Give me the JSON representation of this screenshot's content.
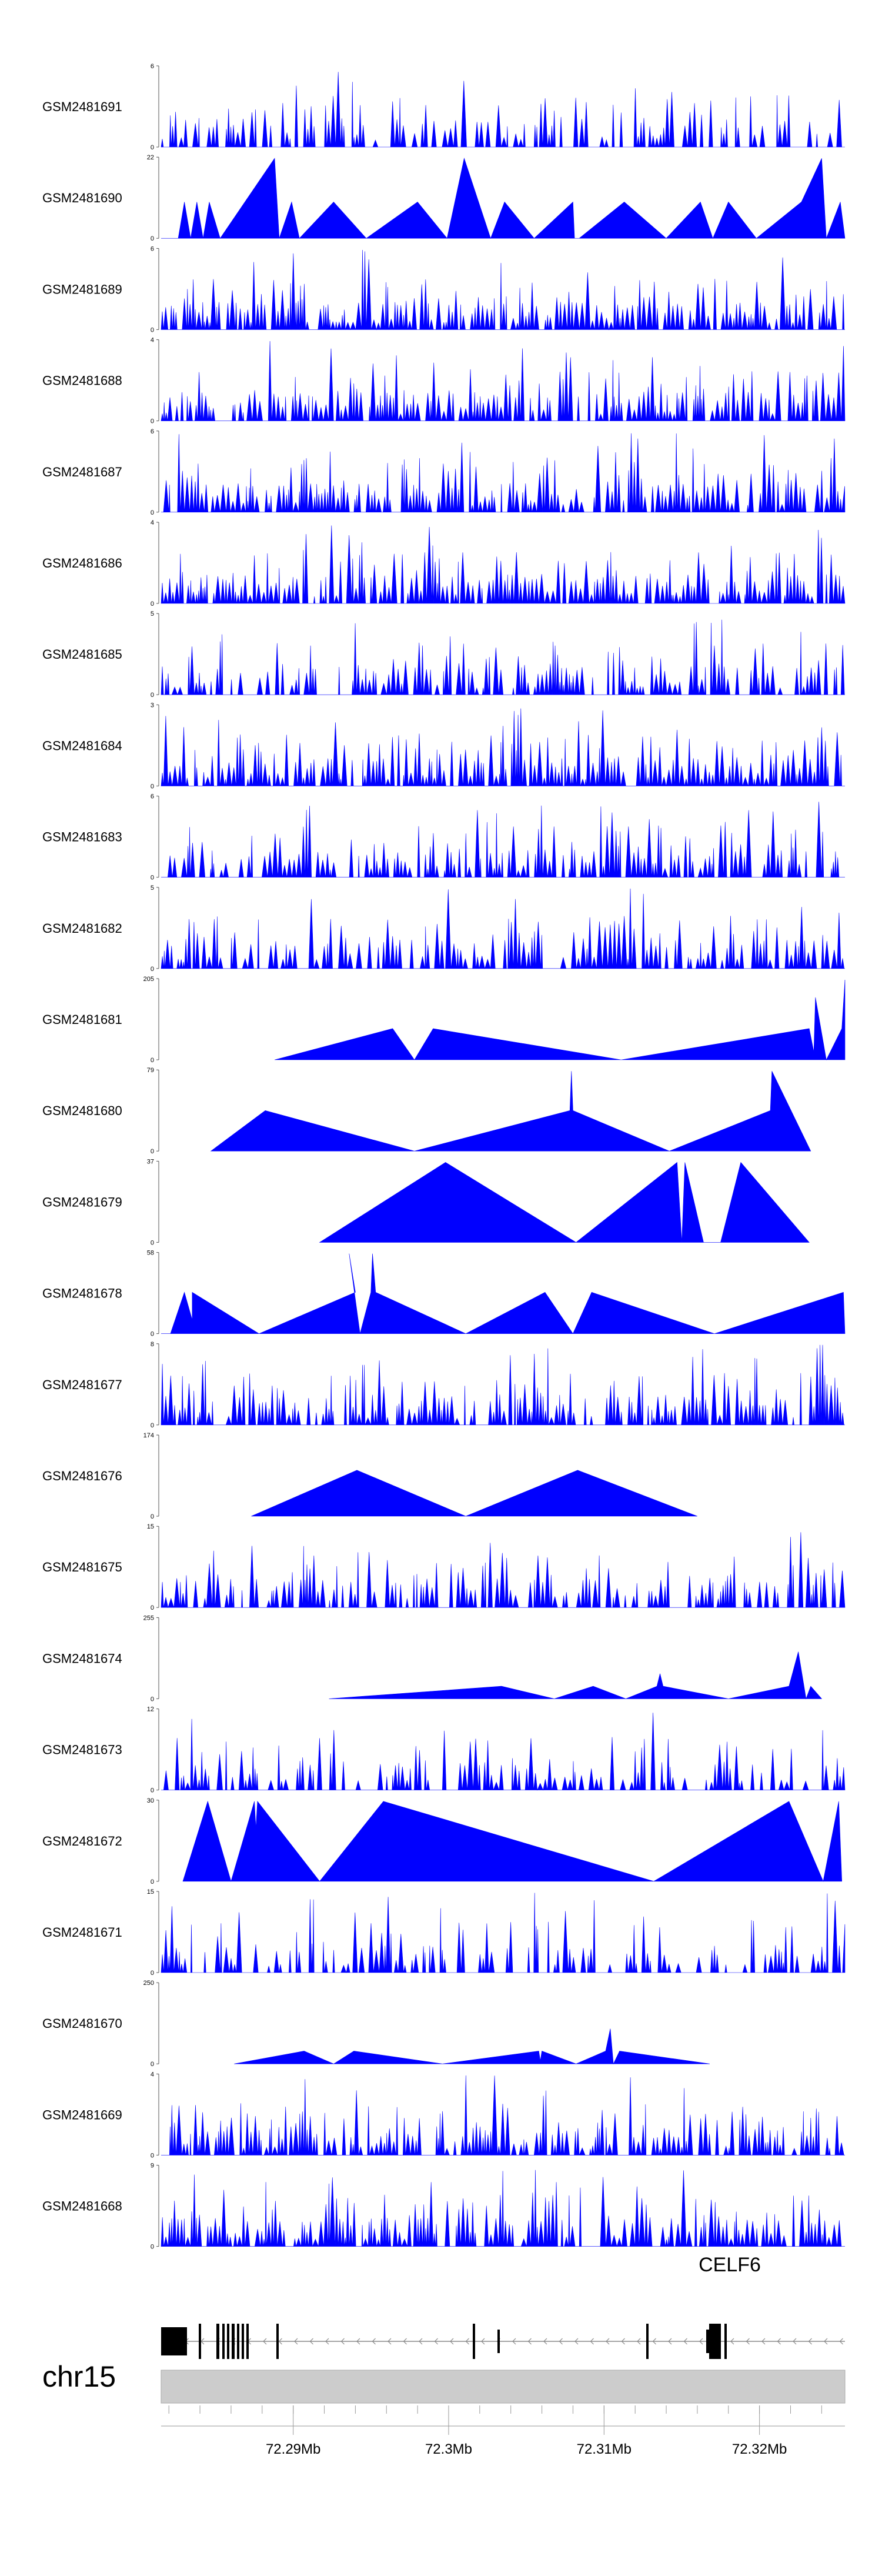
{
  "chart_data": {
    "type": "area",
    "title": "",
    "xlabel": "",
    "ylabel": "",
    "chromosome": "chr15",
    "gene": "CELF6",
    "series_color": "#0000ff",
    "xlim": [
      72.2815,
      72.3255
    ],
    "xticks": [
      {
        "value": 72.29,
        "label": "72.29Mb"
      },
      {
        "value": 72.3,
        "label": "72.3Mb"
      },
      {
        "value": 72.31,
        "label": "72.31Mb"
      },
      {
        "value": 72.32,
        "label": "72.32Mb"
      }
    ],
    "tracks": [
      {
        "name": "GSM2481691",
        "ymax": "6",
        "mode": "dense",
        "peak_freq": 0.55,
        "seed": 11
      },
      {
        "name": "GSM2481690",
        "ymax": "22",
        "mode": "sparse",
        "points": [
          [
            72.2815,
            0
          ],
          [
            72.2826,
            0
          ],
          [
            72.283,
            10
          ],
          [
            72.2834,
            0
          ],
          [
            72.2838,
            10
          ],
          [
            72.2842,
            0
          ],
          [
            72.2846,
            10
          ],
          [
            72.2853,
            0
          ],
          [
            72.2888,
            22
          ],
          [
            72.2891,
            0
          ],
          [
            72.2899,
            10
          ],
          [
            72.2904,
            0
          ],
          [
            72.2926,
            10
          ],
          [
            72.2947,
            0
          ],
          [
            72.298,
            10
          ],
          [
            72.2999,
            0
          ],
          [
            72.301,
            22
          ],
          [
            72.3027,
            0
          ],
          [
            72.3036,
            10
          ],
          [
            72.3055,
            0
          ],
          [
            72.308,
            10
          ],
          [
            72.3081,
            0
          ],
          [
            72.3084,
            0
          ],
          [
            72.3113,
            10
          ],
          [
            72.314,
            0
          ],
          [
            72.3162,
            10
          ],
          [
            72.317,
            0
          ],
          [
            72.318,
            10
          ],
          [
            72.3198,
            0
          ],
          [
            72.3227,
            10
          ],
          [
            72.324,
            22
          ],
          [
            72.3243,
            0
          ],
          [
            72.3252,
            10
          ],
          [
            72.3255,
            0
          ]
        ]
      },
      {
        "name": "GSM2481689",
        "ymax": "6",
        "mode": "dense",
        "peak_freq": 0.85,
        "seed": 23
      },
      {
        "name": "GSM2481688",
        "ymax": "4",
        "mode": "dense",
        "peak_freq": 0.85,
        "seed": 37
      },
      {
        "name": "GSM2481687",
        "ymax": "6",
        "mode": "dense",
        "peak_freq": 0.8,
        "seed": 41
      },
      {
        "name": "GSM2481686",
        "ymax": "4",
        "mode": "dense",
        "peak_freq": 0.85,
        "seed": 53
      },
      {
        "name": "GSM2481685",
        "ymax": "5",
        "mode": "dense",
        "peak_freq": 0.7,
        "seed": 67
      },
      {
        "name": "GSM2481684",
        "ymax": "3",
        "mode": "dense",
        "peak_freq": 0.85,
        "seed": 71
      },
      {
        "name": "GSM2481683",
        "ymax": "6",
        "mode": "dense",
        "peak_freq": 0.7,
        "seed": 83
      },
      {
        "name": "GSM2481682",
        "ymax": "5",
        "mode": "dense",
        "peak_freq": 0.7,
        "seed": 97
      },
      {
        "name": "GSM2481681",
        "ymax": "205",
        "mode": "sparse",
        "points": [
          [
            72.2888,
            0
          ],
          [
            72.2964,
            80
          ],
          [
            72.2978,
            0
          ],
          [
            72.299,
            80
          ],
          [
            72.3111,
            0
          ],
          [
            72.3232,
            80
          ],
          [
            72.3235,
            20
          ],
          [
            72.3236,
            160
          ],
          [
            72.3243,
            0
          ],
          [
            72.3253,
            80
          ],
          [
            72.3255,
            205
          ]
        ]
      },
      {
        "name": "GSM2481680",
        "ymax": "79",
        "mode": "sparse",
        "points": [
          [
            72.2847,
            0
          ],
          [
            72.2882,
            40
          ],
          [
            72.2978,
            0
          ],
          [
            72.3078,
            40
          ],
          [
            72.3079,
            79
          ],
          [
            72.308,
            40
          ],
          [
            72.3142,
            0
          ],
          [
            72.3207,
            40
          ],
          [
            72.3208,
            79
          ],
          [
            72.3233,
            0
          ]
        ]
      },
      {
        "name": "GSM2481679",
        "ymax": "37",
        "mode": "sparse",
        "points": [
          [
            72.2917,
            0
          ],
          [
            72.2998,
            37
          ],
          [
            72.3082,
            0
          ],
          [
            72.3147,
            37
          ],
          [
            72.315,
            0
          ],
          [
            72.3152,
            37
          ],
          [
            72.3164,
            0
          ],
          [
            72.3175,
            0
          ],
          [
            72.3188,
            37
          ],
          [
            72.3232,
            0
          ]
        ]
      },
      {
        "name": "GSM2481678",
        "ymax": "58",
        "mode": "sparse",
        "points": [
          [
            72.2815,
            0
          ],
          [
            72.2821,
            0
          ],
          [
            72.283,
            30
          ],
          [
            72.2835,
            10
          ],
          [
            72.2835,
            30
          ],
          [
            72.2878,
            0
          ],
          [
            72.294,
            30
          ],
          [
            72.2936,
            58
          ],
          [
            72.2943,
            0
          ],
          [
            72.295,
            30
          ],
          [
            72.2951,
            58
          ],
          [
            72.2953,
            30
          ],
          [
            72.3011,
            0
          ],
          [
            72.3062,
            30
          ],
          [
            72.308,
            0
          ],
          [
            72.3092,
            30
          ],
          [
            72.3171,
            0
          ],
          [
            72.3254,
            30
          ],
          [
            72.3255,
            0
          ]
        ]
      },
      {
        "name": "GSM2481677",
        "ymax": "8",
        "mode": "dense",
        "peak_freq": 0.75,
        "seed": 101,
        "bumps": [
          [
            72.2945,
            0.75
          ],
          [
            72.324,
            1.0
          ]
        ]
      },
      {
        "name": "GSM2481676",
        "ymax": "174",
        "mode": "sparse",
        "points": [
          [
            72.2873,
            0
          ],
          [
            72.2941,
            100
          ],
          [
            72.3011,
            0
          ],
          [
            72.3083,
            100
          ],
          [
            72.316,
            0
          ]
        ]
      },
      {
        "name": "GSM2481675",
        "ymax": "15",
        "mode": "dense",
        "peak_freq": 0.65,
        "seed": 113
      },
      {
        "name": "GSM2481674",
        "ymax": "255",
        "mode": "sparse",
        "points": [
          [
            72.2923,
            0
          ],
          [
            72.3034,
            40
          ],
          [
            72.3068,
            0
          ],
          [
            72.3093,
            40
          ],
          [
            72.3114,
            0
          ],
          [
            72.3134,
            40
          ],
          [
            72.3136,
            80
          ],
          [
            72.3138,
            40
          ],
          [
            72.318,
            0
          ],
          [
            72.3219,
            40
          ],
          [
            72.3225,
            150
          ],
          [
            72.323,
            0
          ],
          [
            72.3233,
            40
          ],
          [
            72.324,
            0
          ]
        ]
      },
      {
        "name": "GSM2481673",
        "ymax": "12",
        "mode": "dense",
        "peak_freq": 0.6,
        "seed": 127,
        "bumps": [
          [
            72.2825,
            0.65
          ]
        ]
      },
      {
        "name": "GSM2481672",
        "ymax": "30",
        "mode": "sparse",
        "points": [
          [
            72.2829,
            0
          ],
          [
            72.2845,
            30
          ],
          [
            72.286,
            0
          ],
          [
            72.2875,
            30
          ],
          [
            72.2876,
            20
          ],
          [
            72.2877,
            30
          ],
          [
            72.2917,
            0
          ],
          [
            72.2958,
            30
          ],
          [
            72.3132,
            0
          ],
          [
            72.3219,
            30
          ],
          [
            72.3241,
            0
          ],
          [
            72.3251,
            30
          ],
          [
            72.3253,
            0
          ]
        ]
      },
      {
        "name": "GSM2481671",
        "ymax": "15",
        "mode": "dense",
        "peak_freq": 0.6,
        "seed": 131
      },
      {
        "name": "GSM2481670",
        "ymax": "250",
        "mode": "sparse",
        "points": [
          [
            72.2862,
            0
          ],
          [
            72.2907,
            40
          ],
          [
            72.2926,
            0
          ],
          [
            72.2939,
            40
          ],
          [
            72.2996,
            0
          ],
          [
            72.3058,
            40
          ],
          [
            72.3059,
            10
          ],
          [
            72.306,
            40
          ],
          [
            72.3082,
            0
          ],
          [
            72.3101,
            40
          ],
          [
            72.3104,
            110
          ],
          [
            72.3106,
            0
          ],
          [
            72.311,
            40
          ],
          [
            72.3168,
            0
          ]
        ]
      },
      {
        "name": "GSM2481669",
        "ymax": "4",
        "mode": "dense",
        "peak_freq": 0.8,
        "seed": 139
      },
      {
        "name": "GSM2481668",
        "ymax": "9",
        "mode": "dense",
        "peak_freq": 0.8,
        "seed": 149
      }
    ]
  }
}
